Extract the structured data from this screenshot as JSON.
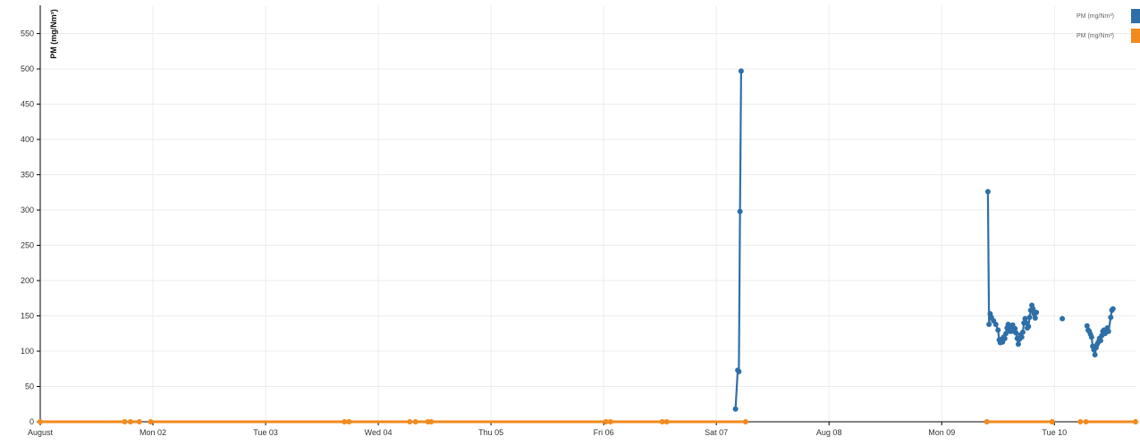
{
  "chart_data": {
    "type": "line",
    "ylabel": "PM (mg/Nm³)",
    "xlabel": "",
    "x_unit": "days from Sun Aug 01 00:00",
    "xlim": [
      0,
      9.72
    ],
    "ylim": [
      0,
      590
    ],
    "y_ticks": [
      0,
      50,
      100,
      150,
      200,
      250,
      300,
      350,
      400,
      450,
      500,
      550
    ],
    "x_ticks": [
      {
        "label": "August",
        "value": 0
      },
      {
        "label": "Mon 02",
        "value": 1
      },
      {
        "label": "Tue 03",
        "value": 2
      },
      {
        "label": "Wed 04",
        "value": 3
      },
      {
        "label": "Thu 05",
        "value": 4
      },
      {
        "label": "Fri 06",
        "value": 5
      },
      {
        "label": "Sat 07",
        "value": 6
      },
      {
        "label": "Aug 08",
        "value": 7
      },
      {
        "label": "Mon 09",
        "value": 8
      },
      {
        "label": "Tue 10",
        "value": 9
      }
    ],
    "grid": true,
    "legend_position": "top-right",
    "legend": [
      {
        "label": "PM (mg/Nm³)",
        "color": "#2f6fa8"
      },
      {
        "label": "PM (mg/Nm³)",
        "color": "#f28a1d"
      }
    ],
    "series": [
      {
        "color": "#2f6fa8",
        "segments": [
          [
            [
              6.17,
              18
            ],
            [
              6.19,
              73
            ],
            [
              6.2,
              71
            ],
            [
              6.21,
              298
            ],
            [
              6.22,
              497
            ]
          ],
          [
            [
              8.41,
              326
            ],
            [
              8.42,
              138
            ],
            [
              8.43,
              153
            ],
            [
              8.44,
              148
            ],
            [
              8.46,
              143
            ],
            [
              8.48,
              138
            ],
            [
              8.5,
              130
            ],
            [
              8.51,
              116
            ],
            [
              8.52,
              112
            ],
            [
              8.53,
              117
            ],
            [
              8.54,
              113
            ],
            [
              8.55,
              120
            ],
            [
              8.56,
              118
            ],
            [
              8.57,
              125
            ],
            [
              8.58,
              133
            ],
            [
              8.59,
              138
            ],
            [
              8.6,
              130
            ],
            [
              8.61,
              128
            ],
            [
              8.62,
              135
            ],
            [
              8.63,
              137
            ],
            [
              8.64,
              128
            ],
            [
              8.65,
              132
            ],
            [
              8.66,
              126
            ],
            [
              8.67,
              118
            ],
            [
              8.68,
              110
            ],
            [
              8.69,
              117
            ],
            [
              8.7,
              123
            ],
            [
              8.71,
              120
            ],
            [
              8.72,
              127
            ],
            [
              8.73,
              140
            ],
            [
              8.74,
              146
            ],
            [
              8.75,
              140
            ],
            [
              8.76,
              133
            ],
            [
              8.77,
              135
            ],
            [
              8.78,
              148
            ],
            [
              8.79,
              158
            ],
            [
              8.8,
              165
            ],
            [
              8.81,
              160
            ],
            [
              8.82,
              153
            ],
            [
              8.83,
              147
            ],
            [
              8.84,
              155
            ]
          ],
          [
            [
              9.07,
              146
            ]
          ],
          [
            [
              9.29,
              136
            ],
            [
              9.3,
              130
            ],
            [
              9.31,
              128
            ],
            [
              9.32,
              124
            ],
            [
              9.33,
              120
            ],
            [
              9.34,
              107
            ],
            [
              9.35,
              102
            ],
            [
              9.36,
              95
            ],
            [
              9.37,
              105
            ],
            [
              9.38,
              110
            ],
            [
              9.39,
              113
            ],
            [
              9.4,
              118
            ],
            [
              9.41,
              115
            ],
            [
              9.42,
              122
            ],
            [
              9.43,
              128
            ],
            [
              9.44,
              130
            ],
            [
              9.45,
              125
            ],
            [
              9.46,
              128
            ],
            [
              9.47,
              133
            ],
            [
              9.48,
              128
            ],
            [
              9.5,
              148
            ],
            [
              9.51,
              158
            ],
            [
              9.52,
              160
            ]
          ]
        ]
      },
      {
        "color": "#f28a1d",
        "segments": [
          [
            [
              0.0,
              0
            ],
            [
              0.75,
              0
            ]
          ],
          [
            [
              0.8,
              0
            ],
            [
              0.88,
              0
            ]
          ],
          [
            [
              0.98,
              0
            ],
            [
              2.7,
              0
            ]
          ],
          [
            [
              2.74,
              0
            ],
            [
              3.28,
              0
            ]
          ],
          [
            [
              3.33,
              0
            ],
            [
              3.44,
              0
            ]
          ],
          [
            [
              3.47,
              0
            ],
            [
              5.02,
              0
            ]
          ],
          [
            [
              5.06,
              0
            ],
            [
              5.52,
              0
            ]
          ],
          [
            [
              5.56,
              0
            ],
            [
              6.26,
              0
            ]
          ],
          [
            [
              8.4,
              0
            ],
            [
              8.98,
              0
            ]
          ],
          [
            [
              9.23,
              0
            ]
          ],
          [
            [
              9.28,
              0
            ],
            [
              9.72,
              0
            ]
          ]
        ]
      }
    ]
  }
}
